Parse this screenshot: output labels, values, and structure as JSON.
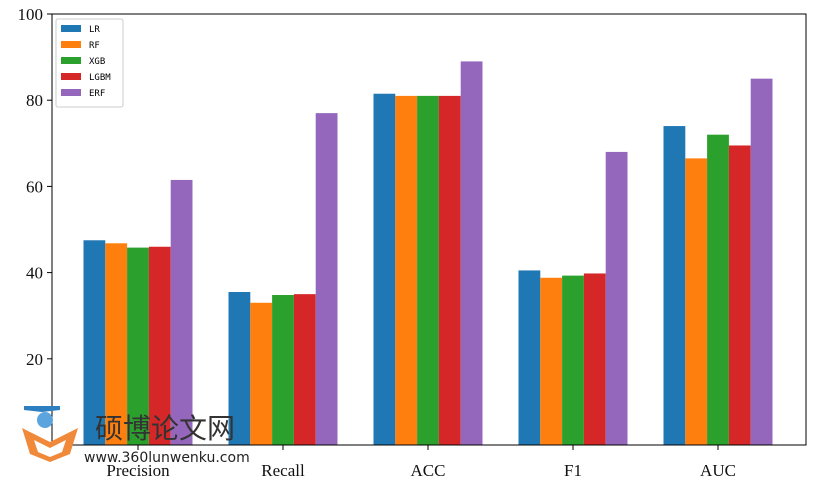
{
  "chart_data": {
    "type": "bar",
    "categories": [
      "Precision",
      "Recall",
      "ACC",
      "F1",
      "AUC"
    ],
    "series": [
      {
        "name": "LR",
        "color": "#1f77b4",
        "values": [
          47.5,
          35.5,
          81.5,
          40.5,
          74.0
        ]
      },
      {
        "name": "RF",
        "color": "#ff7f0e",
        "values": [
          46.8,
          33.0,
          81.0,
          38.8,
          66.5
        ]
      },
      {
        "name": "XGB",
        "color": "#2ca02c",
        "values": [
          45.8,
          34.8,
          81.0,
          39.3,
          72.0
        ]
      },
      {
        "name": "LGBM",
        "color": "#d62728",
        "values": [
          46.0,
          35.0,
          81.0,
          39.8,
          69.5
        ]
      },
      {
        "name": "ERF",
        "color": "#9467bd",
        "values": [
          61.5,
          77.0,
          89.0,
          68.0,
          85.0
        ]
      }
    ],
    "ylim": [
      0,
      100
    ],
    "yticks": [
      "0",
      "20",
      "40",
      "60",
      "80",
      "100"
    ],
    "grid": false,
    "legend_position": "top-left"
  },
  "watermark": {
    "title": "硕博论文网",
    "url": "www.360lunwenku.com"
  }
}
